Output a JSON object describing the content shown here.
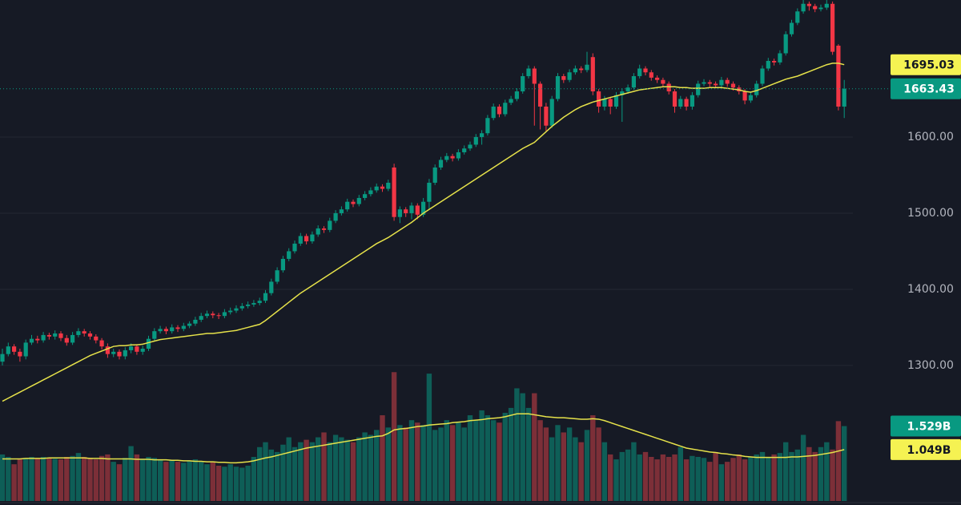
{
  "chart_data": {
    "type": "candlestick",
    "ylim": [
      1122,
      1780
    ],
    "yticks": [
      {
        "value": 1300,
        "label": "1300.00"
      },
      {
        "value": 1400,
        "label": "1400.00"
      },
      {
        "value": 1500,
        "label": "1500.00"
      },
      {
        "value": 1600,
        "label": "1600.00"
      }
    ],
    "grid": true,
    "up_color": "#089981",
    "down_color": "#f23645",
    "ma_color": "#e6e24a",
    "volume_up_color": "#0e5e57",
    "volume_down_color": "#7c2f38",
    "volume_ylim": [
      0,
      2.7
    ],
    "candles": [
      [
        1305,
        1322,
        1300,
        1315
      ],
      [
        1315,
        1330,
        1312,
        1325
      ],
      [
        1325,
        1328,
        1314,
        1318
      ],
      [
        1318,
        1322,
        1305,
        1312
      ],
      [
        1312,
        1334,
        1308,
        1330
      ],
      [
        1330,
        1340,
        1327,
        1335
      ],
      [
        1335,
        1339,
        1329,
        1333
      ],
      [
        1333,
        1344,
        1330,
        1340
      ],
      [
        1340,
        1343,
        1334,
        1338
      ],
      [
        1338,
        1346,
        1334,
        1342
      ],
      [
        1342,
        1345,
        1332,
        1336
      ],
      [
        1336,
        1340,
        1326,
        1330
      ],
      [
        1330,
        1344,
        1327,
        1340
      ],
      [
        1340,
        1349,
        1337,
        1345
      ],
      [
        1345,
        1348,
        1338,
        1342
      ],
      [
        1342,
        1345,
        1334,
        1338
      ],
      [
        1338,
        1341,
        1329,
        1333
      ],
      [
        1333,
        1336,
        1321,
        1325
      ],
      [
        1325,
        1329,
        1310,
        1315
      ],
      [
        1315,
        1322,
        1311,
        1318
      ],
      [
        1318,
        1321,
        1308,
        1312
      ],
      [
        1312,
        1324,
        1308,
        1320
      ],
      [
        1320,
        1329,
        1316,
        1325
      ],
      [
        1325,
        1328,
        1314,
        1318
      ],
      [
        1318,
        1326,
        1314,
        1322
      ],
      [
        1322,
        1339,
        1319,
        1335
      ],
      [
        1335,
        1349,
        1332,
        1345
      ],
      [
        1345,
        1352,
        1342,
        1348
      ],
      [
        1348,
        1351,
        1341,
        1345
      ],
      [
        1345,
        1354,
        1342,
        1350
      ],
      [
        1350,
        1353,
        1344,
        1348
      ],
      [
        1348,
        1356,
        1345,
        1352
      ],
      [
        1352,
        1358,
        1349,
        1355
      ],
      [
        1355,
        1364,
        1352,
        1360
      ],
      [
        1360,
        1369,
        1357,
        1365
      ],
      [
        1365,
        1372,
        1362,
        1368
      ],
      [
        1368,
        1371,
        1362,
        1366
      ],
      [
        1366,
        1369,
        1361,
        1365
      ],
      [
        1365,
        1374,
        1362,
        1370
      ],
      [
        1370,
        1376,
        1367,
        1372
      ],
      [
        1372,
        1379,
        1369,
        1375
      ],
      [
        1375,
        1382,
        1372,
        1378
      ],
      [
        1378,
        1384,
        1375,
        1380
      ],
      [
        1380,
        1386,
        1377,
        1382
      ],
      [
        1382,
        1389,
        1379,
        1385
      ],
      [
        1385,
        1399,
        1382,
        1395
      ],
      [
        1395,
        1414,
        1392,
        1410
      ],
      [
        1410,
        1429,
        1407,
        1425
      ],
      [
        1425,
        1444,
        1422,
        1440
      ],
      [
        1440,
        1454,
        1437,
        1450
      ],
      [
        1450,
        1464,
        1447,
        1460
      ],
      [
        1460,
        1474,
        1457,
        1470
      ],
      [
        1470,
        1473,
        1459,
        1463
      ],
      [
        1463,
        1476,
        1460,
        1472
      ],
      [
        1472,
        1484,
        1469,
        1480
      ],
      [
        1480,
        1483,
        1474,
        1478
      ],
      [
        1478,
        1494,
        1475,
        1490
      ],
      [
        1490,
        1504,
        1487,
        1500
      ],
      [
        1500,
        1509,
        1497,
        1505
      ],
      [
        1505,
        1519,
        1502,
        1515
      ],
      [
        1515,
        1518,
        1508,
        1512
      ],
      [
        1512,
        1524,
        1509,
        1520
      ],
      [
        1520,
        1529,
        1517,
        1525
      ],
      [
        1525,
        1534,
        1522,
        1530
      ],
      [
        1530,
        1539,
        1527,
        1535
      ],
      [
        1535,
        1538,
        1528,
        1532
      ],
      [
        1532,
        1544,
        1529,
        1540
      ],
      [
        1560,
        1565,
        1490,
        1495
      ],
      [
        1495,
        1509,
        1487,
        1505
      ],
      [
        1505,
        1508,
        1495,
        1500
      ],
      [
        1500,
        1514,
        1492,
        1510
      ],
      [
        1510,
        1513,
        1492,
        1498
      ],
      [
        1498,
        1520,
        1495,
        1515
      ],
      [
        1515,
        1545,
        1505,
        1540
      ],
      [
        1540,
        1564,
        1537,
        1560
      ],
      [
        1560,
        1574,
        1557,
        1570
      ],
      [
        1570,
        1579,
        1567,
        1575
      ],
      [
        1575,
        1578,
        1568,
        1572
      ],
      [
        1572,
        1584,
        1569,
        1580
      ],
      [
        1580,
        1589,
        1577,
        1585
      ],
      [
        1585,
        1594,
        1582,
        1590
      ],
      [
        1590,
        1604,
        1587,
        1600
      ],
      [
        1600,
        1609,
        1590,
        1605
      ],
      [
        1605,
        1629,
        1602,
        1625
      ],
      [
        1625,
        1644,
        1622,
        1640
      ],
      [
        1640,
        1643,
        1626,
        1630
      ],
      [
        1630,
        1649,
        1627,
        1645
      ],
      [
        1645,
        1654,
        1642,
        1650
      ],
      [
        1650,
        1664,
        1647,
        1660
      ],
      [
        1660,
        1684,
        1657,
        1680
      ],
      [
        1680,
        1694,
        1677,
        1690
      ],
      [
        1690,
        1693,
        1615,
        1670
      ],
      [
        1670,
        1673,
        1610,
        1640
      ],
      [
        1640,
        1645,
        1608,
        1615
      ],
      [
        1615,
        1654,
        1612,
        1650
      ],
      [
        1650,
        1684,
        1647,
        1680
      ],
      [
        1680,
        1683,
        1671,
        1675
      ],
      [
        1675,
        1689,
        1672,
        1685
      ],
      [
        1685,
        1694,
        1682,
        1690
      ],
      [
        1690,
        1693,
        1684,
        1688
      ],
      [
        1688,
        1712,
        1685,
        1695
      ],
      [
        1705,
        1710,
        1655,
        1660
      ],
      [
        1660,
        1663,
        1632,
        1640
      ],
      [
        1640,
        1654,
        1635,
        1650
      ],
      [
        1650,
        1653,
        1630,
        1640
      ],
      [
        1640,
        1659,
        1637,
        1655
      ],
      [
        1655,
        1664,
        1620,
        1660
      ],
      [
        1660,
        1669,
        1657,
        1665
      ],
      [
        1665,
        1684,
        1662,
        1680
      ],
      [
        1680,
        1695,
        1677,
        1690
      ],
      [
        1690,
        1693,
        1681,
        1685
      ],
      [
        1685,
        1688,
        1674,
        1678
      ],
      [
        1678,
        1681,
        1671,
        1675
      ],
      [
        1675,
        1678,
        1666,
        1670
      ],
      [
        1670,
        1673,
        1656,
        1660
      ],
      [
        1660,
        1663,
        1632,
        1640
      ],
      [
        1640,
        1654,
        1637,
        1650
      ],
      [
        1650,
        1653,
        1635,
        1640
      ],
      [
        1640,
        1659,
        1636,
        1655
      ],
      [
        1655,
        1674,
        1652,
        1670
      ],
      [
        1670,
        1676,
        1667,
        1672
      ],
      [
        1672,
        1675,
        1666,
        1670
      ],
      [
        1670,
        1673,
        1664,
        1668
      ],
      [
        1668,
        1679,
        1665,
        1675
      ],
      [
        1675,
        1678,
        1666,
        1670
      ],
      [
        1670,
        1673,
        1661,
        1665
      ],
      [
        1665,
        1668,
        1656,
        1660
      ],
      [
        1660,
        1663,
        1643,
        1648
      ],
      [
        1648,
        1659,
        1645,
        1655
      ],
      [
        1655,
        1674,
        1652,
        1670
      ],
      [
        1670,
        1694,
        1667,
        1690
      ],
      [
        1690,
        1704,
        1687,
        1700
      ],
      [
        1700,
        1703,
        1694,
        1698
      ],
      [
        1698,
        1714,
        1695,
        1710
      ],
      [
        1710,
        1739,
        1707,
        1735
      ],
      [
        1735,
        1754,
        1732,
        1750
      ],
      [
        1750,
        1769,
        1747,
        1765
      ],
      [
        1765,
        1785,
        1762,
        1775
      ],
      [
        1775,
        1778,
        1766,
        1772
      ],
      [
        1772,
        1775,
        1764,
        1768
      ],
      [
        1768,
        1774,
        1765,
        1770
      ],
      [
        1770,
        1780,
        1767,
        1775
      ],
      [
        1775,
        1778,
        1708,
        1712
      ],
      [
        1720,
        1722,
        1635,
        1640
      ],
      [
        1640,
        1675,
        1625,
        1663.43
      ]
    ],
    "ma": [
      1253,
      1257,
      1261,
      1265,
      1269,
      1273,
      1277,
      1281,
      1285,
      1289,
      1293,
      1297,
      1301,
      1305,
      1309,
      1313,
      1316,
      1319,
      1322,
      1325,
      1326,
      1326,
      1327,
      1327,
      1328,
      1330,
      1332,
      1334,
      1335,
      1336,
      1337,
      1338,
      1339,
      1340,
      1341,
      1342,
      1342,
      1343,
      1344,
      1345,
      1346,
      1348,
      1350,
      1352,
      1354,
      1359,
      1365,
      1371,
      1377,
      1383,
      1389,
      1395,
      1400,
      1405,
      1410,
      1415,
      1420,
      1425,
      1430,
      1435,
      1440,
      1445,
      1450,
      1455,
      1460,
      1464,
      1468,
      1473,
      1478,
      1483,
      1488,
      1494,
      1500,
      1505,
      1510,
      1515,
      1520,
      1525,
      1530,
      1535,
      1540,
      1545,
      1550,
      1555,
      1560,
      1565,
      1570,
      1575,
      1580,
      1585,
      1589,
      1593,
      1600,
      1607,
      1614,
      1620,
      1626,
      1631,
      1636,
      1640,
      1643,
      1646,
      1648,
      1650,
      1652,
      1654,
      1656,
      1658,
      1660,
      1662,
      1663,
      1664,
      1665,
      1666,
      1666,
      1666,
      1665,
      1665,
      1664,
      1664,
      1664,
      1665,
      1665,
      1665,
      1664,
      1663,
      1662,
      1660,
      1659,
      1661,
      1664,
      1667,
      1670,
      1673,
      1676,
      1678,
      1680,
      1683,
      1686,
      1689,
      1692,
      1695,
      1697,
      1697,
      1695.03
    ],
    "volume": [
      0.95,
      0.9,
      0.75,
      0.85,
      0.88,
      0.9,
      0.87,
      0.9,
      0.88,
      0.86,
      0.85,
      0.9,
      0.92,
      0.98,
      0.9,
      0.88,
      0.85,
      0.92,
      0.95,
      0.8,
      0.75,
      0.88,
      1.12,
      0.95,
      0.85,
      0.9,
      0.88,
      0.85,
      0.8,
      0.83,
      0.8,
      0.78,
      0.82,
      0.85,
      0.8,
      0.75,
      0.8,
      0.72,
      0.7,
      0.75,
      0.7,
      0.68,
      0.72,
      0.9,
      1.1,
      1.2,
      1.05,
      1.0,
      1.15,
      1.3,
      1.1,
      1.2,
      1.25,
      1.2,
      1.3,
      1.4,
      1.2,
      1.35,
      1.3,
      1.25,
      1.2,
      1.3,
      1.4,
      1.35,
      1.45,
      1.75,
      1.5,
      2.63,
      1.55,
      1.5,
      1.65,
      1.6,
      1.55,
      2.6,
      1.45,
      1.5,
      1.65,
      1.55,
      1.6,
      1.5,
      1.75,
      1.65,
      1.85,
      1.75,
      1.65,
      1.6,
      1.8,
      1.9,
      2.3,
      2.2,
      1.9,
      2.2,
      1.65,
      1.5,
      1.3,
      1.55,
      1.4,
      1.5,
      1.3,
      1.2,
      1.45,
      1.75,
      1.5,
      1.2,
      0.95,
      0.85,
      1.0,
      1.05,
      1.2,
      0.95,
      1.0,
      0.9,
      0.85,
      0.95,
      0.9,
      0.95,
      1.1,
      0.85,
      0.92,
      0.9,
      0.88,
      0.8,
      1.0,
      0.75,
      0.8,
      0.88,
      0.95,
      0.85,
      0.9,
      0.95,
      1.0,
      0.9,
      0.95,
      0.98,
      1.2,
      1.0,
      1.05,
      1.35,
      1.1,
      1.0,
      1.1,
      1.2,
      1.05,
      1.63,
      1.529
    ],
    "volume_ma": [
      0.86,
      0.86,
      0.86,
      0.86,
      0.87,
      0.87,
      0.87,
      0.87,
      0.88,
      0.88,
      0.88,
      0.88,
      0.88,
      0.88,
      0.88,
      0.87,
      0.87,
      0.87,
      0.86,
      0.86,
      0.86,
      0.86,
      0.86,
      0.85,
      0.85,
      0.85,
      0.84,
      0.84,
      0.84,
      0.83,
      0.83,
      0.82,
      0.82,
      0.81,
      0.81,
      0.8,
      0.8,
      0.79,
      0.79,
      0.78,
      0.78,
      0.79,
      0.8,
      0.82,
      0.85,
      0.88,
      0.9,
      0.93,
      0.96,
      0.99,
      1.02,
      1.05,
      1.08,
      1.1,
      1.12,
      1.14,
      1.16,
      1.18,
      1.2,
      1.22,
      1.24,
      1.26,
      1.28,
      1.3,
      1.32,
      1.33,
      1.38,
      1.45,
      1.47,
      1.48,
      1.5,
      1.52,
      1.53,
      1.55,
      1.56,
      1.57,
      1.58,
      1.6,
      1.61,
      1.62,
      1.64,
      1.65,
      1.66,
      1.68,
      1.69,
      1.7,
      1.72,
      1.75,
      1.78,
      1.78,
      1.78,
      1.76,
      1.74,
      1.72,
      1.71,
      1.7,
      1.7,
      1.69,
      1.68,
      1.67,
      1.67,
      1.68,
      1.67,
      1.64,
      1.6,
      1.56,
      1.52,
      1.48,
      1.44,
      1.4,
      1.36,
      1.32,
      1.28,
      1.24,
      1.2,
      1.16,
      1.12,
      1.08,
      1.06,
      1.04,
      1.02,
      1.0,
      0.99,
      0.97,
      0.96,
      0.94,
      0.93,
      0.91,
      0.9,
      0.89,
      0.89,
      0.89,
      0.89,
      0.89,
      0.89,
      0.9,
      0.9,
      0.91,
      0.92,
      0.93,
      0.95,
      0.97,
      0.99,
      1.02,
      1.049
    ],
    "price_tags": [
      {
        "value": 1695.03,
        "label": "1695.03",
        "color": "#f5f252",
        "text_color": "#131722"
      },
      {
        "value": 1663.43,
        "label": "1663.43",
        "color": "#089981",
        "text_color": "#ffffff"
      }
    ],
    "volume_tags": [
      {
        "value": 1.529,
        "label": "1.529B",
        "color": "#089981",
        "text_color": "#ffffff"
      },
      {
        "value": 1.049,
        "label": "1.049B",
        "color": "#f5f252",
        "text_color": "#131722"
      }
    ]
  }
}
